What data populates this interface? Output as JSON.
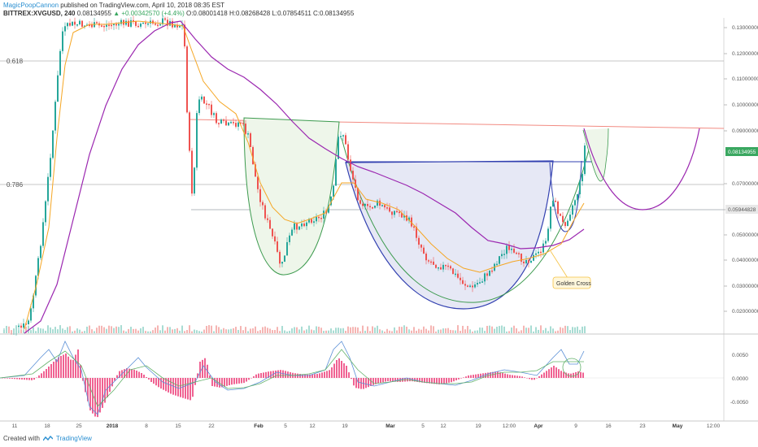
{
  "header": {
    "author": "MagicPoopCannon",
    "published": "published on TradingView.com, April 10, 2018 08:35 EST",
    "symbol": "BITTREX:XVGUSD, 240",
    "last": "0.08134955",
    "change": "▲ +0.00342570 (+4.4%)",
    "o": "O:0.08001418",
    "h": "H:0.08268428",
    "l": "L:0.07854511",
    "c": "C:0.08134955"
  },
  "price_axis": {
    "ticks": [
      "0.13000000",
      "0.12000000",
      "0.11000000",
      "0.10000000",
      "0.09000000",
      "0.07000000",
      "0.06000000",
      "0.05000000",
      "0.04000000",
      "0.03000000",
      "0.02000000"
    ],
    "current_price": "0.08134955",
    "marker_price": "0.05944828"
  },
  "fib_levels": [
    "0.618",
    "0.786"
  ],
  "annotation": {
    "golden_cross": "Golden Cross"
  },
  "macd_axis": {
    "ticks": [
      "0.0050",
      "0.0000",
      "-0.0050"
    ]
  },
  "time_axis": {
    "labels": [
      "11",
      "18",
      "25",
      "2018",
      "8",
      "15",
      "22",
      "Feb",
      "5",
      "12",
      "19",
      "Mar",
      "5",
      "12",
      "19",
      "12:00",
      "Apr",
      "9",
      "16",
      "23",
      "May",
      "12:00"
    ]
  },
  "footer": {
    "created": "Created with",
    "brand": "TradingView"
  },
  "colors": {
    "up": "#26a69a",
    "down": "#ef5350",
    "ma_fast": "#f5a623",
    "ma_slow": "#9b27b0",
    "histogram": "#f06292",
    "resistance": "#f28b82",
    "cup_green": "#3c9a4e",
    "cup_blue": "#3240b0"
  },
  "chart_data": {
    "type": "candlestick",
    "symbol": "BITTREX:XVGUSD",
    "interval": "240",
    "ylim": [
      0.015,
      0.135
    ],
    "series": [
      {
        "name": "price",
        "x": [
          "Dec 11",
          "Dec 18",
          "Dec 25",
          "Jan 1",
          "Jan 8",
          "Jan 15",
          "Jan 22",
          "Feb 1",
          "Feb 5",
          "Feb 12",
          "Feb 19",
          "Mar 1",
          "Mar 5",
          "Mar 12",
          "Mar 19",
          "Mar 26",
          "Apr 1",
          "Apr 5",
          "Apr 9"
        ],
        "values": [
          0.018,
          0.045,
          0.125,
          0.13,
          0.125,
          0.125,
          0.092,
          0.07,
          0.045,
          0.052,
          0.085,
          0.065,
          0.052,
          0.032,
          0.028,
          0.042,
          0.04,
          0.055,
          0.0813
        ]
      }
    ],
    "macd_ylim": [
      -0.008,
      0.008
    ]
  }
}
